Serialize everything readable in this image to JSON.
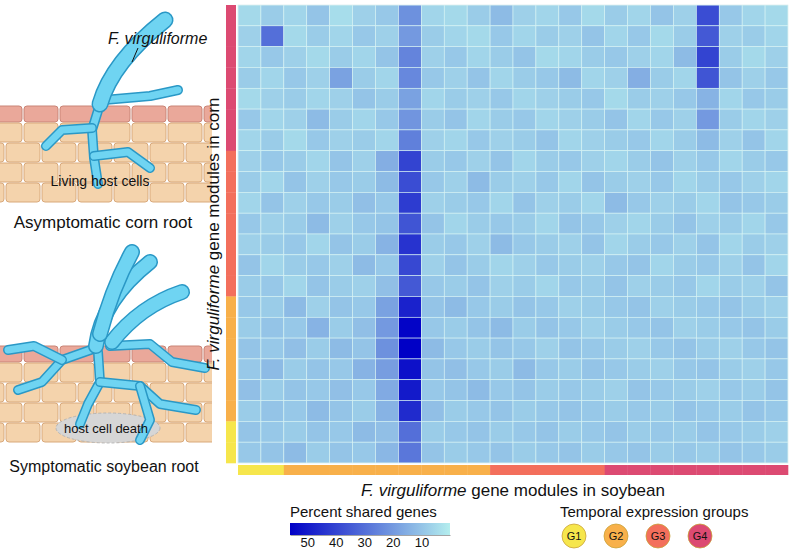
{
  "chart_data": {
    "type": "heatmap",
    "xlabel": "F. virguliforme gene modules in soybean",
    "ylabel": "F. virguliforme gene modules in corn",
    "x_groups": [
      "G1",
      "G1",
      "G2",
      "G2",
      "G2",
      "G2",
      "G2",
      "G2",
      "G2",
      "G2",
      "G2",
      "G3",
      "G3",
      "G3",
      "G3",
      "G3",
      "G4",
      "G4",
      "G4",
      "G4",
      "G4",
      "G4",
      "G4",
      "G4"
    ],
    "y_groups": [
      "G4",
      "G4",
      "G4",
      "G4",
      "G4",
      "G4",
      "G4",
      "G3",
      "G3",
      "G3",
      "G3",
      "G3",
      "G3",
      "G3",
      "G2",
      "G2",
      "G2",
      "G2",
      "G2",
      "G2",
      "G1",
      "G1"
    ],
    "cells": [
      [
        5,
        8,
        6,
        10,
        4,
        7,
        9,
        22,
        6,
        5,
        8,
        12,
        7,
        6,
        9,
        5,
        8,
        6,
        10,
        7,
        38,
        9,
        6,
        5
      ],
      [
        7,
        30,
        5,
        8,
        6,
        9,
        7,
        20,
        8,
        6,
        5,
        9,
        6,
        8,
        7,
        10,
        6,
        9,
        5,
        8,
        35,
        7,
        8,
        6
      ],
      [
        6,
        9,
        7,
        5,
        8,
        6,
        10,
        25,
        7,
        9,
        6,
        8,
        10,
        5,
        6,
        8,
        9,
        7,
        6,
        12,
        40,
        8,
        5,
        7
      ],
      [
        8,
        6,
        9,
        7,
        18,
        8,
        6,
        24,
        9,
        7,
        10,
        6,
        8,
        9,
        12,
        6,
        7,
        15,
        8,
        6,
        36,
        10,
        7,
        9
      ],
      [
        5,
        7,
        8,
        6,
        7,
        10,
        8,
        18,
        6,
        8,
        7,
        9,
        6,
        7,
        8,
        9,
        5,
        8,
        7,
        9,
        14,
        6,
        9,
        8
      ],
      [
        9,
        6,
        7,
        12,
        8,
        6,
        9,
        21,
        8,
        10,
        6,
        8,
        9,
        6,
        7,
        8,
        10,
        6,
        9,
        7,
        20,
        8,
        6,
        7
      ],
      [
        6,
        8,
        5,
        9,
        7,
        8,
        6,
        26,
        7,
        6,
        9,
        7,
        8,
        10,
        6,
        7,
        8,
        9,
        6,
        8,
        12,
        7,
        10,
        6
      ],
      [
        7,
        9,
        8,
        6,
        10,
        7,
        15,
        40,
        8,
        9,
        7,
        10,
        6,
        8,
        9,
        7,
        6,
        8,
        10,
        7,
        9,
        6,
        8,
        9
      ],
      [
        8,
        6,
        10,
        7,
        9,
        8,
        12,
        38,
        9,
        7,
        12,
        8,
        7,
        9,
        6,
        10,
        8,
        7,
        9,
        6,
        8,
        9,
        7,
        6
      ],
      [
        6,
        10,
        7,
        9,
        8,
        11,
        9,
        42,
        7,
        8,
        9,
        6,
        10,
        7,
        8,
        6,
        12,
        9,
        7,
        8,
        6,
        10,
        9,
        8
      ],
      [
        9,
        7,
        8,
        12,
        7,
        9,
        10,
        36,
        10,
        6,
        8,
        9,
        8,
        6,
        10,
        9,
        7,
        6,
        8,
        10,
        7,
        8,
        6,
        9
      ],
      [
        7,
        8,
        9,
        6,
        10,
        8,
        14,
        44,
        8,
        9,
        7,
        12,
        9,
        8,
        7,
        10,
        6,
        8,
        9,
        7,
        10,
        6,
        8,
        7
      ],
      [
        10,
        6,
        8,
        9,
        7,
        12,
        9,
        39,
        7,
        10,
        8,
        6,
        7,
        9,
        8,
        7,
        9,
        10,
        6,
        8,
        9,
        7,
        10,
        6
      ],
      [
        8,
        9,
        6,
        10,
        8,
        7,
        11,
        35,
        9,
        8,
        10,
        7,
        8,
        6,
        9,
        8,
        10,
        7,
        8,
        9,
        6,
        8,
        7,
        10
      ],
      [
        9,
        8,
        12,
        7,
        10,
        9,
        18,
        48,
        10,
        12,
        9,
        8,
        10,
        9,
        7,
        8,
        9,
        10,
        7,
        8,
        9,
        10,
        8,
        7
      ],
      [
        8,
        10,
        9,
        14,
        8,
        11,
        20,
        55,
        9,
        8,
        10,
        12,
        8,
        10,
        9,
        7,
        8,
        9,
        10,
        7,
        8,
        9,
        10,
        8
      ],
      [
        10,
        9,
        11,
        8,
        12,
        10,
        22,
        56,
        12,
        9,
        8,
        10,
        9,
        7,
        10,
        9,
        8,
        7,
        9,
        10,
        8,
        7,
        9,
        10
      ],
      [
        9,
        12,
        8,
        10,
        9,
        14,
        19,
        52,
        10,
        11,
        9,
        8,
        12,
        9,
        8,
        10,
        9,
        8,
        7,
        9,
        10,
        8,
        7,
        9
      ],
      [
        11,
        8,
        10,
        9,
        11,
        9,
        16,
        50,
        9,
        10,
        12,
        9,
        10,
        8,
        9,
        8,
        7,
        10,
        9,
        8,
        7,
        9,
        8,
        10
      ],
      [
        8,
        10,
        9,
        12,
        10,
        8,
        14,
        46,
        11,
        8,
        9,
        10,
        8,
        9,
        10,
        9,
        8,
        9,
        8,
        10,
        9,
        8,
        10,
        9
      ],
      [
        10,
        9,
        8,
        10,
        9,
        12,
        11,
        30,
        8,
        9,
        10,
        8,
        9,
        10,
        8,
        9,
        10,
        8,
        9,
        8,
        10,
        9,
        8,
        7
      ],
      [
        9,
        10,
        12,
        8,
        10,
        9,
        13,
        28,
        10,
        8,
        9,
        10,
        8,
        9,
        10,
        8,
        9,
        10,
        8,
        9,
        8,
        10,
        9,
        8
      ]
    ],
    "colorbar": {
      "title": "Percent shared genes",
      "range": [
        0,
        56
      ],
      "ticks": [
        10,
        20,
        30,
        40,
        50
      ]
    },
    "groups_legend": {
      "title": "Temporal expression groups",
      "names": [
        "G1",
        "G2",
        "G3",
        "G4"
      ],
      "colors": [
        "#f6e64c",
        "#f8b04a",
        "#f36f5c",
        "#dc4a72"
      ]
    }
  },
  "diagram": {
    "fungus_label": "F. virguliforme",
    "living_label": "Living host cells",
    "top_caption": "Asymptomatic corn root",
    "death_label": "host cell death",
    "bottom_caption": "Symptomatic soybean root"
  }
}
